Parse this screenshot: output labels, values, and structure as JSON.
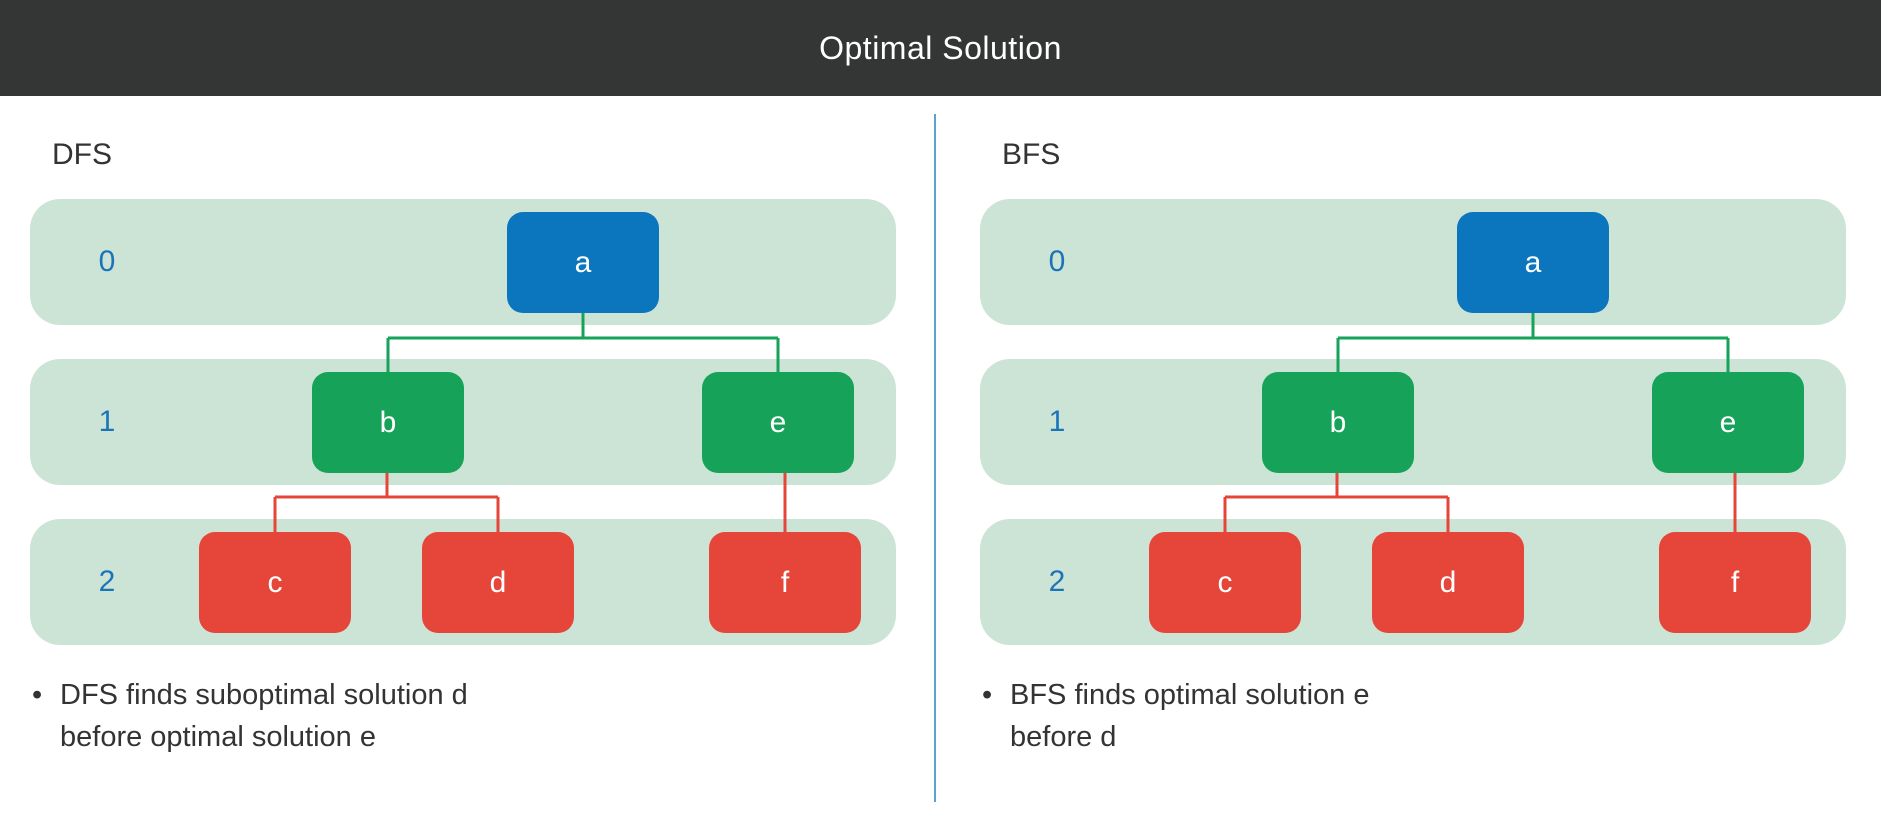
{
  "header": {
    "title": "Optimal Solution"
  },
  "colors": {
    "header_bg": "#343535",
    "band": "#cce4d5",
    "level_label": "#1b74b9",
    "node_blue": "#0b75bd",
    "node_green": "#17a259",
    "node_red": "#e54639",
    "edge_green": "#17a259",
    "edge_red": "#e54639",
    "divider": "#5aa3d1"
  },
  "panels": [
    {
      "title": "DFS",
      "levels": [
        "0",
        "1",
        "2"
      ],
      "nodes": {
        "a": "a",
        "b": "b",
        "e": "e",
        "c": "c",
        "d": "d",
        "f": "f"
      },
      "bullet": {
        "symbol": "•",
        "line1": "DFS finds suboptimal solution d",
        "line2": "before optimal solution e"
      }
    },
    {
      "title": "BFS",
      "levels": [
        "0",
        "1",
        "2"
      ],
      "nodes": {
        "a": "a",
        "b": "b",
        "e": "e",
        "c": "c",
        "d": "d",
        "f": "f"
      },
      "bullet": {
        "symbol": "•",
        "line1": "BFS finds optimal solution e",
        "line2": "before d"
      }
    }
  ]
}
